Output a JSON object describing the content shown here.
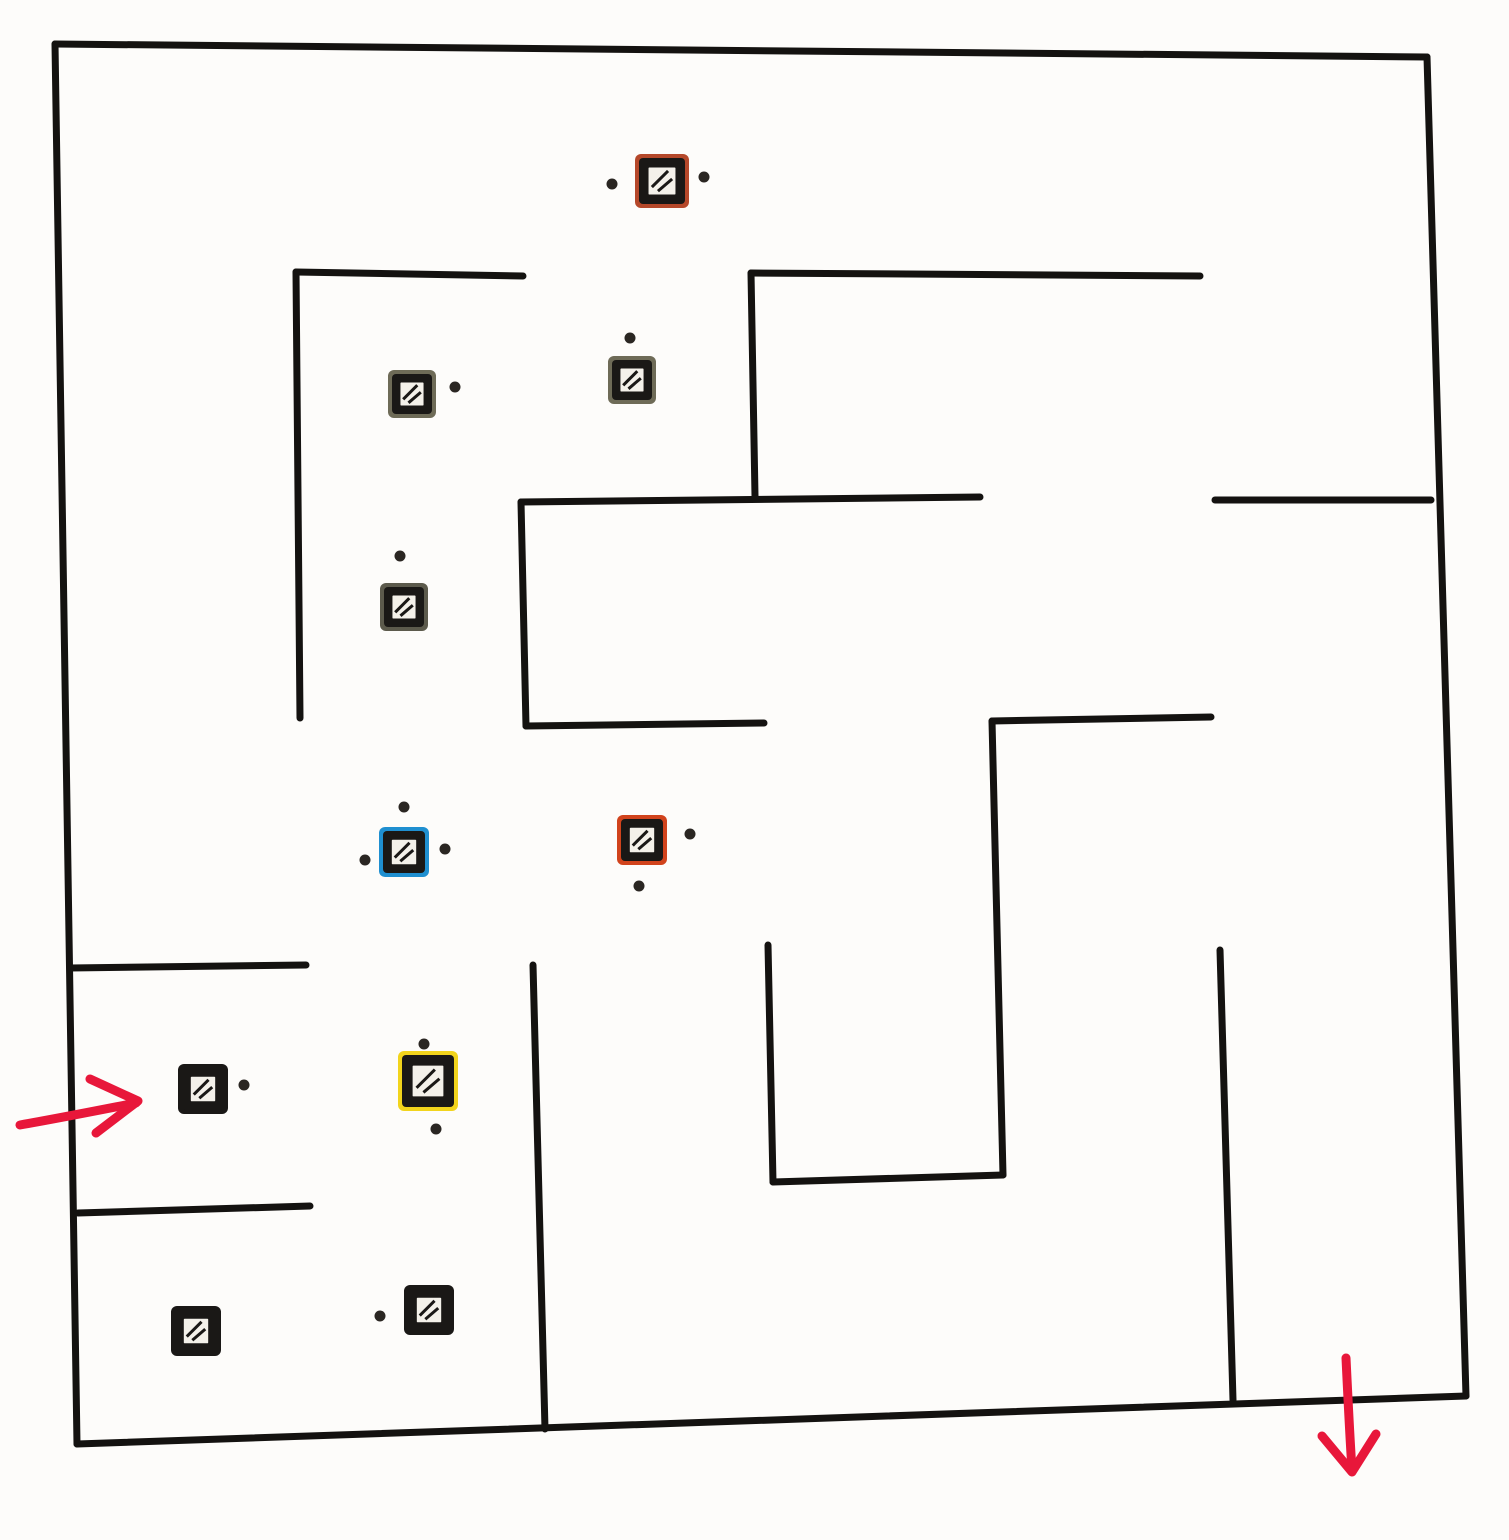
{
  "maze": {
    "colors": {
      "background": "#fdfcfa",
      "wall": "#141210",
      "arrow": "#e8173a"
    },
    "entrance": {
      "icon": "arrow-right-icon",
      "direction": "right"
    },
    "exit": {
      "icon": "arrow-down-icon",
      "direction": "down"
    },
    "pieces": [
      {
        "id": "piece-top-center",
        "icon": "dice-tile-icon",
        "color": "#b5482a",
        "dots": 2
      },
      {
        "id": "piece-upper-left",
        "icon": "dice-tile-icon",
        "color": "#6e6b57",
        "dots": 1
      },
      {
        "id": "piece-upper-middle",
        "icon": "dice-tile-icon",
        "color": "#6e6b57",
        "dots": 1
      },
      {
        "id": "piece-mid-left",
        "icon": "dice-tile-icon",
        "color": "#5c5a4c",
        "dots": 1
      },
      {
        "id": "piece-blue",
        "icon": "dice-tile-icon",
        "color": "#1f8fd0",
        "dots": 3
      },
      {
        "id": "piece-orange",
        "icon": "dice-tile-icon",
        "color": "#d1431c",
        "dots": 2
      },
      {
        "id": "piece-entrance",
        "icon": "dice-tile-icon",
        "color": "#1a1816",
        "dots": 1
      },
      {
        "id": "piece-yellow",
        "icon": "dice-tile-icon",
        "color": "#f2d41c",
        "dots": 2
      },
      {
        "id": "piece-bottom-left",
        "icon": "dice-tile-icon",
        "color": "#1a1816",
        "dots": 0
      },
      {
        "id": "piece-bottom-middle",
        "icon": "dice-tile-icon",
        "color": "#1a1816",
        "dots": 1
      }
    ]
  }
}
